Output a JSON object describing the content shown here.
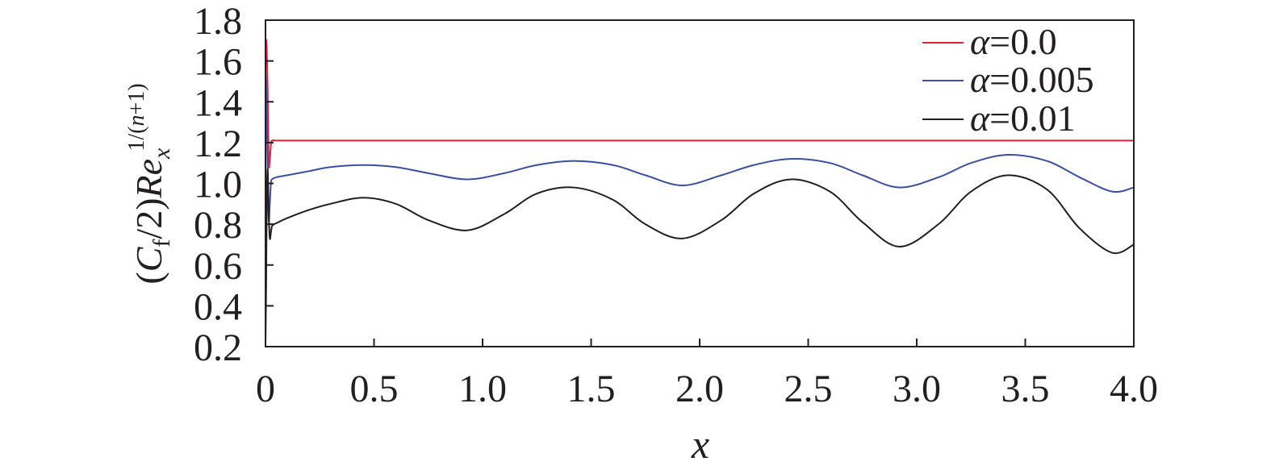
{
  "chart_data": {
    "type": "line",
    "xlabel": "x",
    "ylabel": {
      "open": "(",
      "C": "C",
      "f": "f",
      "slash2": "/2)",
      "Re": "Re",
      "x": "x",
      "exp_a": "1/(",
      "exp_n": "n",
      "exp_b": "+1)"
    },
    "xlim": [
      0,
      4.0
    ],
    "ylim": [
      0.2,
      1.8
    ],
    "x_ticks": [
      0,
      0.5,
      1.0,
      1.5,
      2.0,
      2.5,
      3.0,
      3.5,
      4.0
    ],
    "x_tick_labels": [
      "0",
      "0.5",
      "1.0",
      "1.5",
      "2.0",
      "2.5",
      "3.0",
      "3.5",
      "4.0"
    ],
    "y_ticks": [
      0.2,
      0.4,
      0.6,
      0.8,
      1.0,
      1.2,
      1.4,
      1.6,
      1.8
    ],
    "y_tick_labels": [
      "0.2",
      "0.4",
      "0.6",
      "0.8",
      "1.0",
      "1.2",
      "1.4",
      "1.6",
      "1.8"
    ],
    "grid": false,
    "legend_position": "top-right",
    "series": [
      {
        "name": "α=0.0",
        "symbol": "α",
        "value": "=0.0",
        "color": "#e0203a",
        "x": [
          0.0,
          0.005,
          0.01,
          0.015,
          0.02,
          0.025,
          0.03,
          0.05,
          0.1,
          0.5,
          1.0,
          1.5,
          2.0,
          2.5,
          3.0,
          3.5,
          4.0
        ],
        "y": [
          1.7,
          1.68,
          1.45,
          1.1,
          1.12,
          1.19,
          1.21,
          1.21,
          1.21,
          1.21,
          1.21,
          1.21,
          1.21,
          1.21,
          1.21,
          1.21,
          1.21
        ]
      },
      {
        "name": "α=0.005",
        "symbol": "α",
        "value": "=0.005",
        "color": "#3a4fa3",
        "x": [
          0.0,
          0.005,
          0.01,
          0.015,
          0.02,
          0.025,
          0.03,
          0.05,
          0.1,
          0.2,
          0.3,
          0.45,
          0.6,
          0.75,
          0.93,
          1.1,
          1.25,
          1.42,
          1.6,
          1.75,
          1.92,
          2.1,
          2.25,
          2.42,
          2.6,
          2.75,
          2.92,
          3.1,
          3.25,
          3.42,
          3.6,
          3.75,
          3.9,
          4.0
        ],
        "y": [
          1.55,
          1.4,
          1.05,
          0.82,
          0.9,
          1.0,
          1.02,
          1.03,
          1.04,
          1.06,
          1.08,
          1.09,
          1.08,
          1.05,
          1.02,
          1.05,
          1.09,
          1.11,
          1.09,
          1.04,
          0.99,
          1.04,
          1.09,
          1.12,
          1.1,
          1.04,
          0.98,
          1.03,
          1.1,
          1.14,
          1.11,
          1.03,
          0.96,
          0.98
        ]
      },
      {
        "name": "α=0.01",
        "symbol": "α",
        "value": "=0.01",
        "color": "#231f20",
        "x": [
          0.0,
          0.003,
          0.006,
          0.01,
          0.015,
          0.02,
          0.025,
          0.03,
          0.04,
          0.06,
          0.1,
          0.2,
          0.3,
          0.45,
          0.6,
          0.75,
          0.93,
          1.1,
          1.25,
          1.42,
          1.6,
          1.75,
          1.92,
          2.1,
          2.25,
          2.42,
          2.6,
          2.75,
          2.92,
          3.1,
          3.25,
          3.42,
          3.6,
          3.75,
          3.9,
          4.0
        ],
        "y": [
          0.2,
          0.5,
          0.9,
          1.07,
          0.85,
          0.73,
          0.76,
          0.79,
          0.8,
          0.81,
          0.83,
          0.87,
          0.9,
          0.93,
          0.9,
          0.82,
          0.77,
          0.85,
          0.95,
          0.98,
          0.92,
          0.8,
          0.73,
          0.82,
          0.95,
          1.02,
          0.96,
          0.81,
          0.69,
          0.8,
          0.96,
          1.04,
          0.97,
          0.78,
          0.66,
          0.7
        ]
      }
    ]
  }
}
